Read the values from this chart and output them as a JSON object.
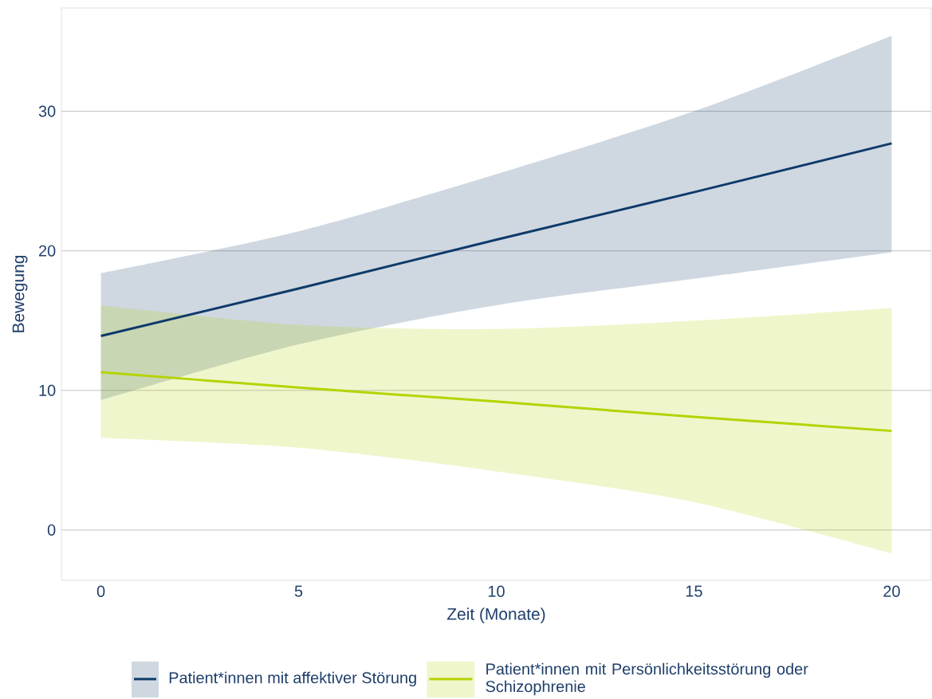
{
  "chart_data": {
    "type": "line",
    "xlabel": "Zeit (Monate)",
    "ylabel": "Bewegung",
    "x": [
      0,
      5,
      10,
      15,
      20
    ],
    "xlim": [
      -1,
      21
    ],
    "ylim": [
      -3.6,
      37.4
    ],
    "xticks": [
      0,
      5,
      10,
      15,
      20
    ],
    "yticks": [
      0,
      10,
      20,
      30
    ],
    "grid": "y",
    "legend": "bottom",
    "series": [
      {
        "name": "Patient*innen mit affektiver Störung",
        "color": "#0e3a6a",
        "values": [
          13.9,
          17.3,
          20.8,
          24.2,
          27.7
        ],
        "lower": [
          9.3,
          13.3,
          16.1,
          18.0,
          19.9
        ],
        "upper": [
          18.4,
          21.4,
          25.5,
          30.0,
          35.4
        ]
      },
      {
        "name": "Patient*innen mit Persönlichkeitsstörung oder Schizophrenie",
        "color": "#b5d300",
        "values": [
          11.3,
          10.2,
          9.2,
          8.1,
          7.1
        ],
        "lower": [
          6.6,
          5.9,
          4.2,
          2.0,
          -1.7
        ],
        "upper": [
          16.1,
          14.7,
          14.4,
          15.0,
          15.9
        ]
      }
    ]
  }
}
